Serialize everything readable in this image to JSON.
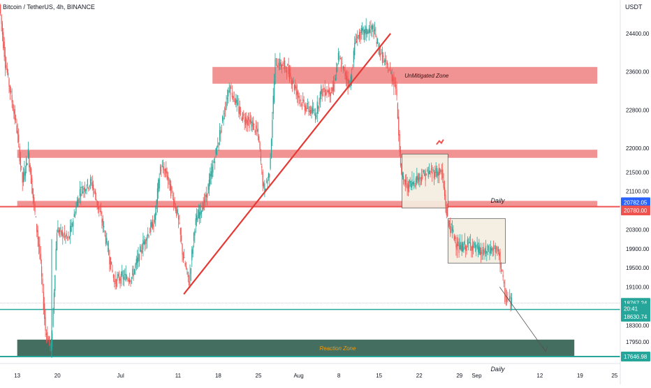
{
  "header": {
    "symbol_title": "Bitcoin / TetherUS, 4h, BINANCE",
    "currency": "USDT"
  },
  "colors": {
    "up": "#26a69a",
    "down": "#ef5350",
    "zone_red": "#f08080",
    "support_teal": "#26a69a",
    "reaction_zone": "#2f5e4f",
    "trendline": "#e53935",
    "box_fill": "#f5eee0",
    "price_tag_blue": "#2962ff"
  },
  "chart_data": {
    "type": "candlestick",
    "title": "Bitcoin / TetherUS, 4h, BINANCE",
    "y_unit": "USDT",
    "y_range": [
      17500,
      25100
    ],
    "x_range": [
      "2022-06-10",
      "2022-09-26"
    ],
    "y_ticks": [
      24400,
      23600,
      22800,
      22000,
      21500,
      21100,
      20300,
      19900,
      19500,
      19100,
      18300,
      17950
    ],
    "x_ticks": [
      {
        "date": "2022-06-13",
        "label": "13"
      },
      {
        "date": "2022-06-20",
        "label": "20"
      },
      {
        "date": "2022-07-01",
        "label": "Jul"
      },
      {
        "date": "2022-07-11",
        "label": "11"
      },
      {
        "date": "2022-07-18",
        "label": "18"
      },
      {
        "date": "2022-07-25",
        "label": "25"
      },
      {
        "date": "2022-08-01",
        "label": "Aug"
      },
      {
        "date": "2022-08-08",
        "label": "8"
      },
      {
        "date": "2022-08-15",
        "label": "15"
      },
      {
        "date": "2022-08-22",
        "label": "22"
      },
      {
        "date": "2022-08-29",
        "label": "29"
      },
      {
        "date": "2022-09-01",
        "label": "Sep"
      },
      {
        "date": "2022-09-12",
        "label": "12"
      },
      {
        "date": "2022-09-19",
        "label": "19"
      },
      {
        "date": "2022-09-25",
        "label": "25"
      }
    ],
    "price_path": [
      [
        "2022-06-10",
        25000
      ],
      [
        "2022-06-11",
        23800
      ],
      [
        "2022-06-13",
        22400
      ],
      [
        "2022-06-14",
        21300
      ],
      [
        "2022-06-15",
        21900
      ],
      [
        "2022-06-16",
        20800
      ],
      [
        "2022-06-17",
        19800
      ],
      [
        "2022-06-18",
        18200
      ],
      [
        "2022-06-19",
        17800
      ],
      [
        "2022-06-20",
        20300
      ],
      [
        "2022-06-22",
        20100
      ],
      [
        "2022-06-24",
        21100
      ],
      [
        "2022-06-26",
        21300
      ],
      [
        "2022-06-28",
        20400
      ],
      [
        "2022-06-30",
        19200
      ],
      [
        "2022-07-01",
        19300
      ],
      [
        "2022-07-03",
        19300
      ],
      [
        "2022-07-05",
        20000
      ],
      [
        "2022-07-07",
        20500
      ],
      [
        "2022-07-08",
        21600
      ],
      [
        "2022-07-09",
        21500
      ],
      [
        "2022-07-11",
        20600
      ],
      [
        "2022-07-12",
        19700
      ],
      [
        "2022-07-13",
        19200
      ],
      [
        "2022-07-14",
        20400
      ],
      [
        "2022-07-16",
        21000
      ],
      [
        "2022-07-18",
        22100
      ],
      [
        "2022-07-20",
        23300
      ],
      [
        "2022-07-21",
        23000
      ],
      [
        "2022-07-22",
        22700
      ],
      [
        "2022-07-24",
        22500
      ],
      [
        "2022-07-25",
        22300
      ],
      [
        "2022-07-26",
        21100
      ],
      [
        "2022-07-27",
        21500
      ],
      [
        "2022-07-28",
        23800
      ],
      [
        "2022-07-30",
        23700
      ],
      [
        "2022-08-01",
        23100
      ],
      [
        "2022-08-02",
        22900
      ],
      [
        "2022-08-04",
        22700
      ],
      [
        "2022-08-05",
        23200
      ],
      [
        "2022-08-07",
        23200
      ],
      [
        "2022-08-08",
        23900
      ],
      [
        "2022-08-10",
        23300
      ],
      [
        "2022-08-11",
        24300
      ],
      [
        "2022-08-12",
        24400
      ],
      [
        "2022-08-14",
        24500
      ],
      [
        "2022-08-15",
        24100
      ],
      [
        "2022-08-16",
        23800
      ],
      [
        "2022-08-17",
        23600
      ],
      [
        "2022-08-18",
        23300
      ],
      [
        "2022-08-19",
        21400
      ],
      [
        "2022-08-20",
        21200
      ],
      [
        "2022-08-22",
        21400
      ],
      [
        "2022-08-24",
        21500
      ],
      [
        "2022-08-26",
        21500
      ],
      [
        "2022-08-27",
        20500
      ],
      [
        "2022-08-28",
        20200
      ],
      [
        "2022-08-29",
        19900
      ],
      [
        "2022-08-31",
        20000
      ],
      [
        "2022-09-02",
        19800
      ],
      [
        "2022-09-04",
        19900
      ],
      [
        "2022-09-05",
        19800
      ],
      [
        "2022-09-06",
        18900
      ],
      [
        "2022-09-07",
        18770
      ]
    ],
    "zones": [
      {
        "name": "unmitigated-zone",
        "label": "UnMitigated Zone",
        "y_from": 23350,
        "y_to": 23700,
        "x_from": "2022-07-17",
        "x_to": "2022-09-22"
      },
      {
        "name": "daily-supply-zone",
        "label": "",
        "y_from": 21800,
        "y_to": 21970,
        "x_from": "2022-06-13",
        "x_to": "2022-09-22"
      },
      {
        "name": "daily-zone",
        "label": "Daily",
        "y_from": 20780,
        "y_to": 20900,
        "x_from": "2022-06-13",
        "x_to": "2022-09-22"
      },
      {
        "name": "reaction-zone",
        "label": "Reaction Zone",
        "y_from": 17650,
        "y_to": 18000,
        "x_from": "2022-06-13",
        "x_to": "2022-09-18"
      }
    ],
    "horizontal_lines": [
      {
        "name": "daily-resistance-line",
        "price": 20780
      },
      {
        "name": "support-line",
        "price": 18630.74
      },
      {
        "name": "daily-support-line",
        "price": 17646.98
      }
    ],
    "trendline": {
      "from": [
        "2022-07-12",
        18950
      ],
      "to": [
        "2022-08-17",
        24400
      ]
    },
    "consolidation_boxes": [
      {
        "x_from": "2022-08-19",
        "x_to": "2022-08-27",
        "y_from": 20750,
        "y_to": 21880
      },
      {
        "x_from": "2022-08-27",
        "x_to": "2022-09-06",
        "y_from": 19600,
        "y_to": 20530
      }
    ],
    "forecast_arrow": {
      "from": [
        "2022-09-05",
        19100
      ],
      "to": [
        "2022-09-13",
        17750
      ]
    },
    "annotations": [
      {
        "text": "Daily",
        "date": "2022-09-01",
        "price": 20920
      },
      {
        "text": "Daily",
        "date": "2022-09-01",
        "price": 17400
      }
    ],
    "price_tags": [
      {
        "value": "20782.05",
        "price": 20870,
        "color": "blue"
      },
      {
        "value": "20780.00",
        "price": 20700,
        "color": "red"
      },
      {
        "value": "18767.24",
        "price": 18767.24,
        "color": "teal"
      },
      {
        "value": "20:41",
        "price": 18650,
        "color": "teal"
      },
      {
        "value": "18630.74",
        "price": 18480,
        "color": "teal"
      },
      {
        "value": "17646.98",
        "price": 17646.98,
        "color": "teal"
      }
    ]
  }
}
